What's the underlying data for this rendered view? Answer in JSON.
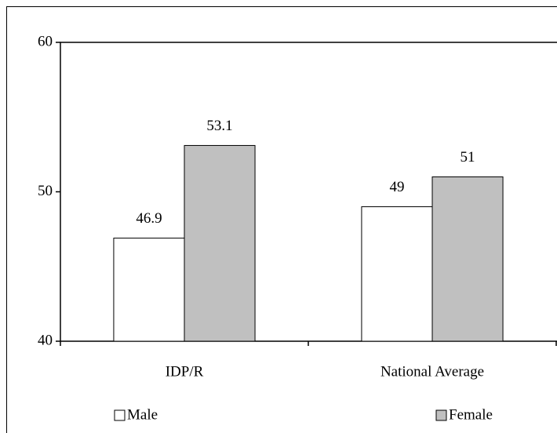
{
  "chart_data": {
    "type": "bar",
    "categories": [
      "IDP/R",
      "National Average"
    ],
    "series": [
      {
        "name": "Male",
        "color": "#ffffff",
        "values": [
          46.9,
          49
        ]
      },
      {
        "name": "Female",
        "color": "#c0c0c0",
        "values": [
          53.1,
          51
        ]
      }
    ],
    "ylim": [
      40,
      60
    ],
    "yticks": [
      40,
      50,
      60
    ],
    "grid": false,
    "legend": "bottom"
  }
}
